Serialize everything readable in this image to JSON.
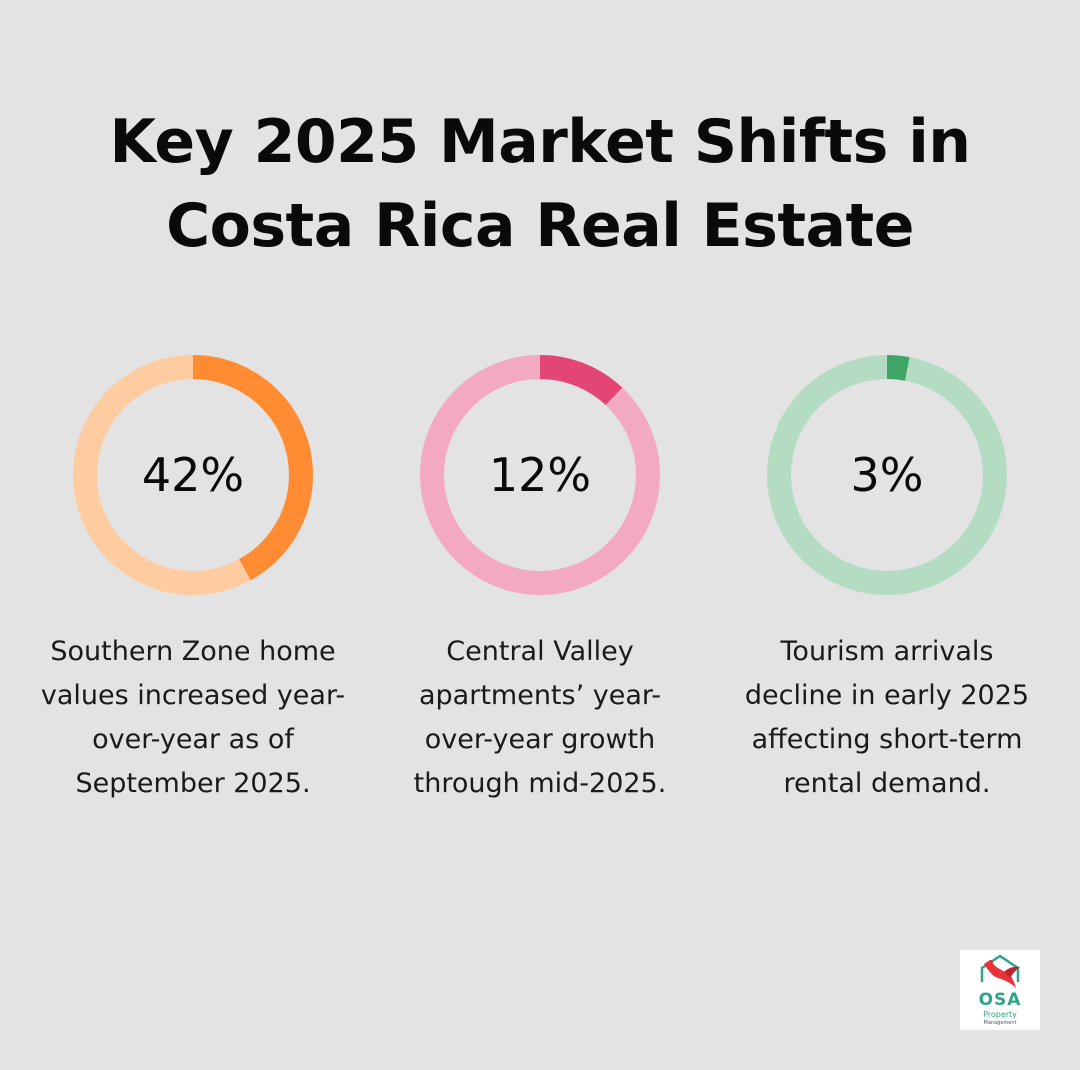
{
  "title": {
    "line1": "Key 2025 Market Shifts in",
    "line2": "Costa Rica Real Estate"
  },
  "chart_data": {
    "type": "donut-stats",
    "items": [
      {
        "value": 42,
        "label": "42%",
        "description": "Southern Zone home values increased year-over-year as of September 2025.",
        "color_fill": "#ff8c33",
        "color_track": "#ffcba0"
      },
      {
        "value": 12,
        "label": "12%",
        "description": "Central Valley apartments’ year-over-year growth through mid-2025.",
        "color_fill": "#e34574",
        "color_track": "#f3a9c0"
      },
      {
        "value": 3,
        "label": "3%",
        "description": "Tourism arrivals decline in early 2025 affecting short-term rental demand.",
        "color_fill": "#3fa566",
        "color_track": "#b3dcc3"
      }
    ]
  },
  "logo": {
    "name": "OSA",
    "sub1": "Property",
    "sub2": "Management",
    "icon": "parrot-house-icon"
  }
}
